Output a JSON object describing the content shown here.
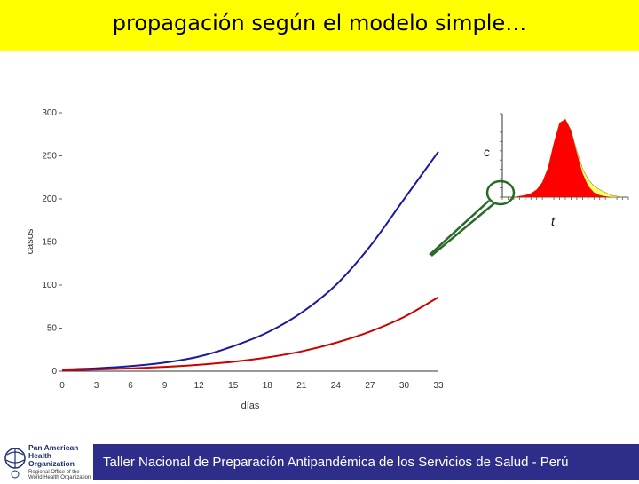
{
  "slide": {
    "title": "propagación según el modelo simple…",
    "footer": "Taller Nacional de Preparación Antipandémica de los Servicios de Salud - Perú",
    "logo": {
      "name": "Pan American Health Organization",
      "subtitle": "Regional Office of the World Health Organization"
    }
  },
  "colors": {
    "title_bar": "#ffff00",
    "footer_band": "#2e2e8a",
    "blue_series": "#1a1aa0",
    "red_series": "#cc0000"
  },
  "chart_data": [
    {
      "type": "line",
      "title": "",
      "xlabel": "días",
      "ylabel": "casos",
      "xlim": [
        0,
        33
      ],
      "ylim": [
        0,
        300
      ],
      "x_ticks": [
        0,
        3,
        6,
        9,
        12,
        15,
        18,
        21,
        24,
        27,
        30,
        33
      ],
      "y_ticks": [
        0,
        50,
        100,
        150,
        200,
        250,
        300
      ],
      "grid": false,
      "series": [
        {
          "color": "#1a1aa0",
          "x": [
            0,
            3,
            6,
            9,
            12,
            15,
            18,
            21,
            24,
            27,
            30,
            33
          ],
          "values": [
            2,
            3.4,
            5.9,
            10,
            17,
            29,
            45,
            68,
            100,
            145,
            200,
            255
          ]
        },
        {
          "color": "#cc0000",
          "x": [
            0,
            3,
            6,
            9,
            12,
            15,
            18,
            21,
            24,
            27,
            30,
            33
          ],
          "values": [
            1,
            1.9,
            3.2,
            5,
            7.5,
            11,
            16,
            23,
            33,
            46,
            63,
            86
          ]
        }
      ]
    },
    {
      "type": "area",
      "inset": true,
      "axis_labels": {
        "y": "c",
        "x": "t"
      },
      "series": [
        {
          "color": "#ff0000",
          "values": [
            0,
            0,
            0,
            1,
            2,
            4,
            8,
            16,
            32,
            58,
            80,
            84,
            72,
            48,
            26,
            12,
            5,
            2,
            1,
            0,
            0,
            0,
            0
          ]
        },
        {
          "color": "#ffff66",
          "values": [
            0,
            0,
            0,
            0,
            0,
            0,
            0,
            0,
            0,
            0,
            0,
            0,
            0,
            2,
            5,
            7,
            7,
            6,
            4,
            2,
            1,
            0,
            0
          ]
        }
      ]
    }
  ]
}
